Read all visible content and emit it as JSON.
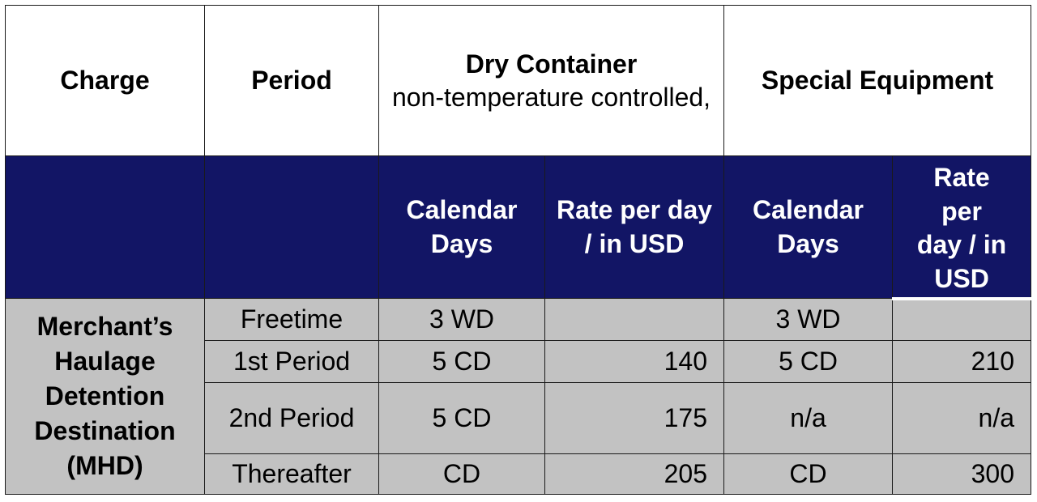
{
  "headers": {
    "charge": "Charge",
    "period": "Period",
    "dry_title": "Dry Container",
    "dry_sub": "non-temperature controlled,",
    "special": "Special Equipment"
  },
  "subheaders": {
    "dry_days": "Calendar Days",
    "dry_rate": "Rate per day / in USD",
    "sp_days": "Calendar Days",
    "sp_rate_lines": [
      "Rate",
      "per",
      "day / in",
      "USD"
    ]
  },
  "charge_label": "Merchant’s Haulage Detention Destination (MHD)",
  "rows": [
    {
      "period": "Freetime",
      "dry_days": "3 WD",
      "dry_rate": "",
      "sp_days": "3 WD",
      "sp_rate": ""
    },
    {
      "period": "1st Period",
      "dry_days": "5 CD",
      "dry_rate": "140",
      "sp_days": "5 CD",
      "sp_rate": "210"
    },
    {
      "period": "2nd Period",
      "dry_days": "5 CD",
      "dry_rate": "175",
      "sp_days": "n/a",
      "sp_rate": "n/a"
    },
    {
      "period": "Thereafter",
      "dry_days": "CD",
      "dry_rate": "205",
      "sp_days": "CD",
      "sp_rate": "300"
    }
  ],
  "colors": {
    "header_bg": "#121565",
    "body_bg": "#c2c2c2"
  }
}
